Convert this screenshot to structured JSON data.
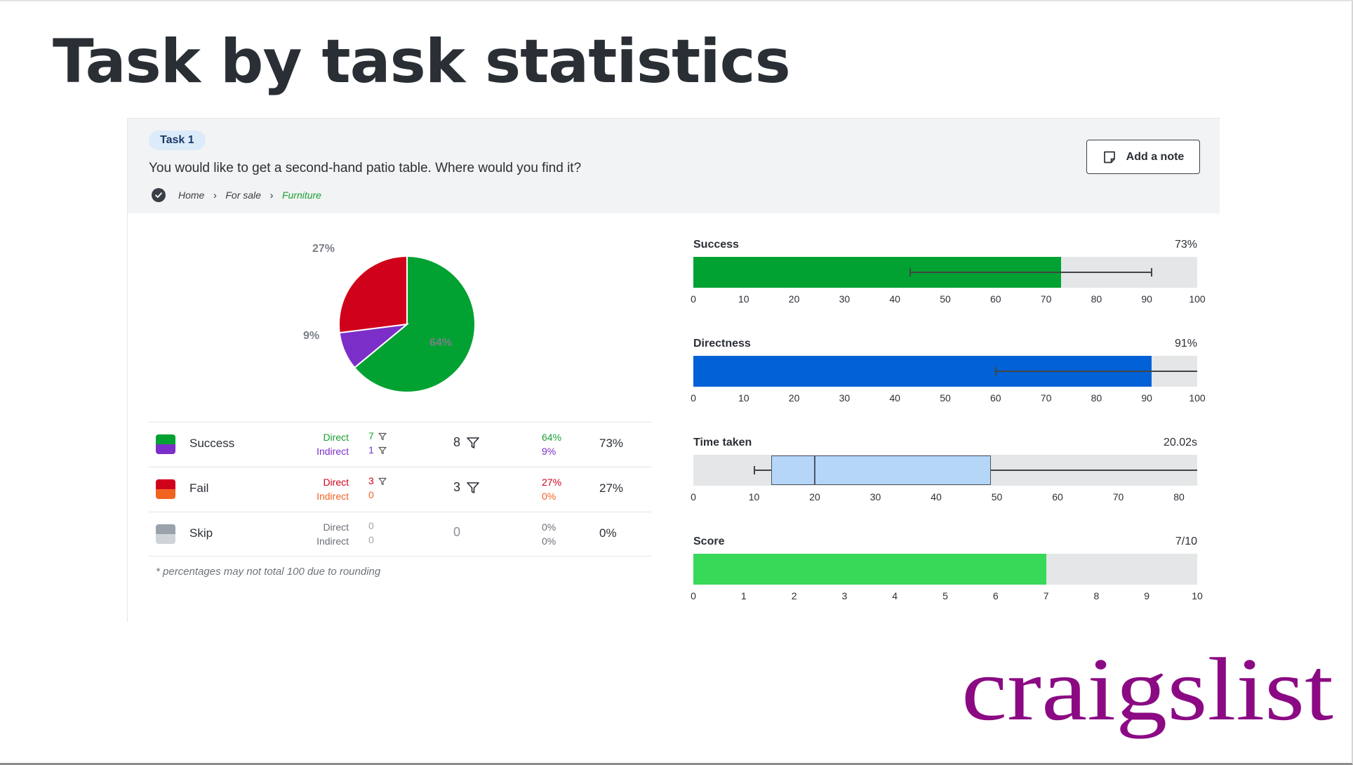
{
  "page": {
    "title": "Task by task statistics"
  },
  "task": {
    "badge": "Task 1",
    "question": "You would like to get a second-hand patio table. Where would you find it?",
    "breadcrumb": [
      "Home",
      "For sale",
      "Furniture"
    ],
    "note_button_label": "Add a note"
  },
  "pie": {
    "slices": [
      {
        "name": "Success direct",
        "percent": 64,
        "label": "64%",
        "color": "#02a232"
      },
      {
        "name": "Success indirect",
        "percent": 9,
        "label": "9%",
        "color": "#7b2fc8"
      },
      {
        "name": "Fail direct",
        "percent": 27,
        "label": "27%",
        "color": "#d0021b"
      }
    ]
  },
  "table": {
    "rows": [
      {
        "label": "Success",
        "colors": [
          "#02a232",
          "#7b2fc8"
        ],
        "direct_label": "Direct",
        "indirect_label": "Indirect",
        "direct_count": "7",
        "indirect_count": "1",
        "total": "8",
        "direct_pct": "64%",
        "indirect_pct": "9%",
        "pct": "73%",
        "direct_color": "#1aa033",
        "indirect_color": "#7b2fc8"
      },
      {
        "label": "Fail",
        "colors": [
          "#d0021b",
          "#f26322"
        ],
        "direct_label": "Direct",
        "indirect_label": "Indirect",
        "direct_count": "3",
        "indirect_count": "0",
        "total": "3",
        "direct_pct": "27%",
        "indirect_pct": "0%",
        "pct": "27%",
        "direct_color": "#d0021b",
        "indirect_color": "#f26322"
      },
      {
        "label": "Skip",
        "colors": [
          "#9aa3ab",
          "#cfd4d8"
        ],
        "direct_label": "Direct",
        "indirect_label": "Indirect",
        "direct_count": "0",
        "indirect_count": "0",
        "total": "0",
        "direct_pct": "0%",
        "indirect_pct": "0%",
        "pct": "0%",
        "direct_color": "#6b7078",
        "indirect_color": "#6b7078"
      }
    ],
    "footnote": "* percentages may not total 100 due to rounding"
  },
  "metrics": {
    "success": {
      "title": "Success",
      "value": "73%",
      "fill": 73,
      "max": 100,
      "error": [
        43,
        91
      ],
      "color": "#02a232",
      "ticks": [
        "0",
        "10",
        "20",
        "30",
        "40",
        "50",
        "60",
        "70",
        "80",
        "90",
        "100"
      ]
    },
    "directness": {
      "title": "Directness",
      "value": "91%",
      "fill": 91,
      "max": 100,
      "error": [
        60,
        100
      ],
      "color": "#0062d6",
      "ticks": [
        "0",
        "10",
        "20",
        "30",
        "40",
        "50",
        "60",
        "70",
        "80",
        "90",
        "100"
      ]
    },
    "time": {
      "title": "Time taken",
      "value": "20.02s",
      "box": {
        "whisker_low": 10,
        "q1": 12.8,
        "median": 20.02,
        "q3": 49,
        "whisker_high": 83
      },
      "axis_max": 83,
      "color": "#b5d6f7",
      "ticks": [
        "0",
        "10",
        "20",
        "30",
        "40",
        "50",
        "60",
        "70",
        "80"
      ]
    },
    "score": {
      "title": "Score",
      "value": "7/10",
      "fill": 7,
      "max": 10,
      "color": "#38d959",
      "ticks": [
        "0",
        "1",
        "2",
        "3",
        "4",
        "5",
        "6",
        "7",
        "8",
        "9",
        "10"
      ]
    }
  },
  "logo": {
    "text": "craigslist",
    "color": "#8b0a84"
  }
}
